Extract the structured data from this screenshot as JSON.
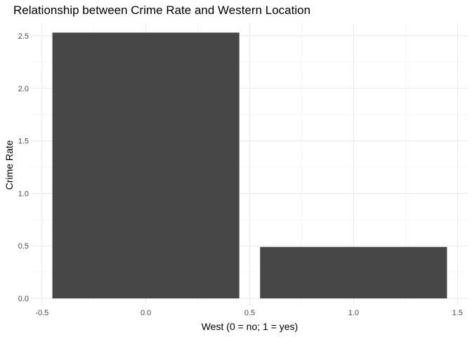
{
  "chart_data": {
    "type": "bar",
    "title": "Relationship between Crime Rate and Western Location",
    "xlabel": "West (0 = no; 1 = yes)",
    "ylabel": "Crime Rate",
    "x": [
      0,
      1
    ],
    "values": [
      2.53,
      0.49
    ],
    "bar_width": 0.9,
    "xlim": [
      -0.55,
      1.55
    ],
    "ylim": [
      -0.06,
      2.62
    ],
    "x_ticks": [
      -0.5,
      0.0,
      0.5,
      1.0,
      1.5
    ],
    "x_tick_labels": [
      "-0.5",
      "0.0",
      "0.5",
      "1.0",
      "1.5"
    ],
    "y_ticks": [
      0.0,
      0.5,
      1.0,
      1.5,
      2.0,
      2.5
    ],
    "y_tick_labels": [
      "0.0",
      "0.5",
      "1.0",
      "1.5",
      "2.0",
      "2.5"
    ],
    "grid": true,
    "bar_color": "#474747",
    "grid_major_color": "#ebebeb",
    "grid_minor_color": "#f5f5f5"
  }
}
